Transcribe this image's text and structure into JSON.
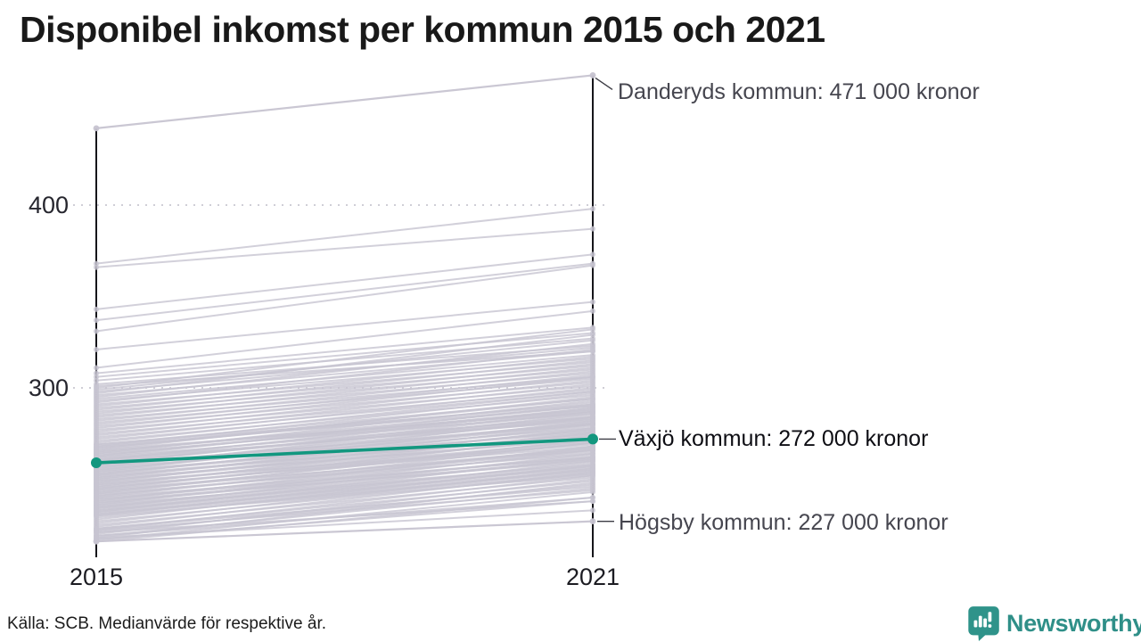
{
  "title": "Disponibel inkomst per kommun 2015 och 2021",
  "footer": {
    "source": "Källa: SCB. Medianvärde för respektive år."
  },
  "branding": {
    "name": "Newsworthy",
    "icon": "newsworthy-speech-bubble-bar-chart-icon",
    "color": "#2f8f88"
  },
  "colors": {
    "highlight": "#12977f",
    "background_line": "#c7c4d1",
    "axis": "#15151a",
    "gridline": "#cfced6",
    "annotation_text": "#46464f",
    "highlight_annotation_text": "#0e0e14"
  },
  "chart_data": {
    "type": "line",
    "subtype": "slopegraph",
    "title": "Disponibel inkomst per kommun 2015 och 2021",
    "x": [
      2015,
      2021
    ],
    "x_tick_labels": [
      "2015",
      "2021"
    ],
    "y_ticks": [
      400,
      300
    ],
    "y_tick_labels": [
      "400",
      "300"
    ],
    "unit": "tusen kronor",
    "grid": "horizontal dotted lines at y=400 and y=300",
    "legend": "none",
    "annotations": [
      {
        "name": "Danderyds kommun",
        "label": "Danderyds kommun: 471 000 kronor",
        "value": 471
      },
      {
        "name": "Växjö kommun",
        "label": "Växjö kommun: 272 000 kronor",
        "value": 272
      },
      {
        "name": "Högsby kommun",
        "label": "Högsby kommun: 227 000 kronor",
        "value": 227
      }
    ],
    "highlight_series": {
      "name": "Växjö kommun",
      "values": [
        259,
        272
      ],
      "color": "#12977f"
    },
    "labeled_series": [
      {
        "name": "Danderyds kommun",
        "values": [
          442,
          471
        ]
      },
      {
        "name": "Högsby kommun",
        "values": [
          216,
          227
        ]
      }
    ],
    "background_series_estimated": [
      [
        368,
        398
      ],
      [
        366,
        387
      ],
      [
        343,
        373
      ],
      [
        337,
        368
      ],
      [
        331,
        367
      ],
      [
        321,
        347
      ],
      [
        311,
        342
      ],
      [
        308,
        333
      ],
      [
        306,
        330
      ],
      [
        304,
        327
      ],
      [
        302,
        323
      ],
      [
        301,
        320
      ],
      [
        300,
        332
      ],
      [
        299,
        326
      ],
      [
        298,
        322
      ],
      [
        297,
        329
      ],
      [
        296,
        320
      ],
      [
        295,
        324
      ],
      [
        294,
        318
      ],
      [
        293,
        316
      ],
      [
        292,
        321
      ],
      [
        291,
        314
      ],
      [
        290,
        317
      ],
      [
        289,
        312
      ],
      [
        288,
        315
      ],
      [
        287,
        310
      ],
      [
        286,
        313
      ],
      [
        285,
        308
      ],
      [
        284,
        311
      ],
      [
        283,
        306
      ],
      [
        282,
        309
      ],
      [
        281,
        305
      ],
      [
        280,
        307
      ],
      [
        279,
        303
      ],
      [
        278,
        306
      ],
      [
        277,
        301
      ],
      [
        276,
        304
      ],
      [
        275,
        299
      ],
      [
        274,
        302
      ],
      [
        273,
        298
      ],
      [
        272,
        300
      ],
      [
        271,
        296
      ],
      [
        270,
        298
      ],
      [
        269,
        294
      ],
      [
        268,
        297
      ],
      [
        267,
        292
      ],
      [
        266,
        295
      ],
      [
        265,
        290
      ],
      [
        264,
        293
      ],
      [
        263,
        288
      ],
      [
        262,
        291
      ],
      [
        261,
        287
      ],
      [
        260,
        289
      ],
      [
        259,
        285
      ],
      [
        258,
        287
      ],
      [
        257,
        283
      ],
      [
        256,
        286
      ],
      [
        255,
        281
      ],
      [
        254,
        284
      ],
      [
        253,
        279
      ],
      [
        252,
        282
      ],
      [
        251,
        277
      ],
      [
        250,
        280
      ],
      [
        249,
        275
      ],
      [
        248,
        278
      ],
      [
        247,
        273
      ],
      [
        246,
        276
      ],
      [
        245,
        271
      ],
      [
        244,
        274
      ],
      [
        243,
        270
      ],
      [
        242,
        272
      ],
      [
        241,
        267
      ],
      [
        240,
        270
      ],
      [
        239,
        265
      ],
      [
        238,
        268
      ],
      [
        237,
        263
      ],
      [
        236,
        266
      ],
      [
        235,
        261
      ],
      [
        234,
        264
      ],
      [
        233,
        259
      ],
      [
        232,
        262
      ],
      [
        231,
        257
      ],
      [
        230,
        260
      ],
      [
        229,
        255
      ],
      [
        228,
        258
      ],
      [
        227,
        253
      ],
      [
        226,
        256
      ],
      [
        225,
        251
      ],
      [
        224,
        254
      ],
      [
        223,
        249
      ],
      [
        222,
        252
      ],
      [
        221,
        247
      ],
      [
        220,
        250
      ],
      [
        219,
        245
      ],
      [
        218,
        248
      ],
      [
        217,
        243
      ],
      [
        216,
        240
      ],
      [
        268,
        290
      ],
      [
        264,
        286
      ],
      [
        260,
        283
      ],
      [
        256,
        278
      ],
      [
        252,
        274
      ],
      [
        248,
        269
      ],
      [
        244,
        266
      ],
      [
        240,
        262
      ],
      [
        236,
        258
      ],
      [
        232,
        254
      ],
      [
        266,
        287
      ],
      [
        262,
        284
      ],
      [
        258,
        280
      ],
      [
        254,
        276
      ],
      [
        250,
        272
      ],
      [
        246,
        268
      ],
      [
        242,
        264
      ],
      [
        238,
        260
      ],
      [
        234,
        256
      ],
      [
        230,
        252
      ],
      [
        267,
        294
      ],
      [
        263,
        289
      ],
      [
        259,
        284
      ],
      [
        255,
        280
      ],
      [
        251,
        275
      ],
      [
        247,
        271
      ],
      [
        243,
        267
      ],
      [
        239,
        262
      ],
      [
        235,
        257
      ],
      [
        231,
        253
      ],
      [
        269,
        291
      ],
      [
        265,
        288
      ],
      [
        261,
        282
      ],
      [
        257,
        281
      ],
      [
        253,
        277
      ],
      [
        249,
        273
      ],
      [
        245,
        270
      ],
      [
        241,
        266
      ],
      [
        237,
        261
      ],
      [
        233,
        255
      ],
      [
        222,
        244
      ],
      [
        219,
        240
      ],
      [
        217,
        238
      ],
      [
        218,
        233
      ],
      [
        221,
        238
      ],
      [
        223,
        246
      ]
    ]
  }
}
